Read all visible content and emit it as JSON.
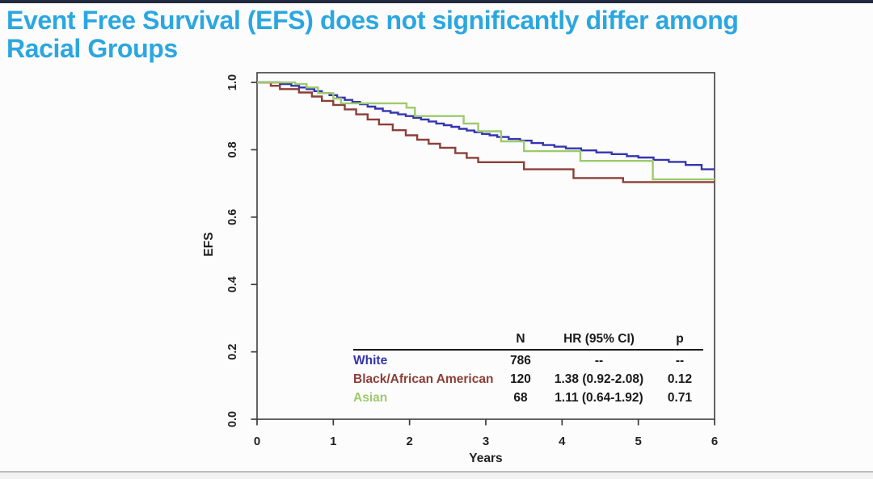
{
  "page": {
    "title_line1": "Event Free Survival (EFS) does not significantly differ among",
    "title_line2": "Racial Groups",
    "title_color": "#2ba7e0"
  },
  "chart_data": {
    "type": "line",
    "subtype": "kaplan-meier-step",
    "title": "",
    "xlabel": "Years",
    "ylabel": "EFS",
    "xlim": [
      0,
      6
    ],
    "ylim": [
      0.0,
      1.0
    ],
    "xticks": [
      "0",
      "1",
      "2",
      "3",
      "4",
      "5",
      "6"
    ],
    "yticks": [
      "0.0",
      "0.2",
      "0.4",
      "0.6",
      "0.8",
      "1.0"
    ],
    "grid": false,
    "legend_position": "inset-table-bottom-right",
    "series": [
      {
        "name": "White",
        "color": "#3434b2",
        "n": 786,
        "hr": "--",
        "p": "--",
        "points": [
          [
            0,
            1.0
          ],
          [
            0.3,
            0.995
          ],
          [
            0.45,
            0.99
          ],
          [
            0.55,
            0.985
          ],
          [
            0.65,
            0.98
          ],
          [
            0.75,
            0.974
          ],
          [
            0.85,
            0.968
          ],
          [
            0.95,
            0.962
          ],
          [
            1.05,
            0.955
          ],
          [
            1.15,
            0.948
          ],
          [
            1.25,
            0.942
          ],
          [
            1.35,
            0.935
          ],
          [
            1.45,
            0.928
          ],
          [
            1.55,
            0.922
          ],
          [
            1.65,
            0.915
          ],
          [
            1.75,
            0.91
          ],
          [
            1.85,
            0.905
          ],
          [
            1.95,
            0.9
          ],
          [
            2.05,
            0.895
          ],
          [
            2.15,
            0.89
          ],
          [
            2.25,
            0.884
          ],
          [
            2.35,
            0.878
          ],
          [
            2.45,
            0.873
          ],
          [
            2.55,
            0.868
          ],
          [
            2.65,
            0.862
          ],
          [
            2.75,
            0.857
          ],
          [
            2.85,
            0.852
          ],
          [
            2.95,
            0.847
          ],
          [
            3.05,
            0.843
          ],
          [
            3.15,
            0.838
          ],
          [
            3.3,
            0.832
          ],
          [
            3.45,
            0.827
          ],
          [
            3.6,
            0.82
          ],
          [
            3.75,
            0.814
          ],
          [
            3.9,
            0.809
          ],
          [
            4.05,
            0.804
          ],
          [
            4.25,
            0.798
          ],
          [
            4.45,
            0.792
          ],
          [
            4.65,
            0.787
          ],
          [
            4.85,
            0.781
          ],
          [
            5.0,
            0.777
          ],
          [
            5.2,
            0.77
          ],
          [
            5.4,
            0.764
          ],
          [
            5.62,
            0.755
          ],
          [
            5.83,
            0.742
          ]
        ]
      },
      {
        "name": "Black/African American",
        "color": "#8c3f38",
        "n": 120,
        "hr": "1.38 (0.92-2.08)",
        "p": "0.12",
        "points": [
          [
            0,
            1.0
          ],
          [
            0.18,
            0.99
          ],
          [
            0.3,
            0.98
          ],
          [
            0.55,
            0.97
          ],
          [
            0.72,
            0.958
          ],
          [
            0.85,
            0.945
          ],
          [
            1.0,
            0.933
          ],
          [
            1.15,
            0.92
          ],
          [
            1.3,
            0.905
          ],
          [
            1.45,
            0.89
          ],
          [
            1.6,
            0.875
          ],
          [
            1.78,
            0.858
          ],
          [
            1.95,
            0.843
          ],
          [
            2.1,
            0.83
          ],
          [
            2.25,
            0.818
          ],
          [
            2.4,
            0.806
          ],
          [
            2.6,
            0.79
          ],
          [
            2.75,
            0.776
          ],
          [
            2.9,
            0.763
          ],
          [
            3.5,
            0.742
          ],
          [
            4.15,
            0.716
          ],
          [
            4.8,
            0.704
          ]
        ]
      },
      {
        "name": "Asian",
        "color": "#9dca6c",
        "n": 68,
        "hr": "1.11 (0.64-1.92)",
        "p": "0.71",
        "points": [
          [
            0,
            1.0
          ],
          [
            0.5,
            0.995
          ],
          [
            0.65,
            0.985
          ],
          [
            0.8,
            0.968
          ],
          [
            1.0,
            0.952
          ],
          [
            1.1,
            0.938
          ],
          [
            1.96,
            0.925
          ],
          [
            2.07,
            0.9
          ],
          [
            2.71,
            0.878
          ],
          [
            2.9,
            0.855
          ],
          [
            3.2,
            0.825
          ],
          [
            3.5,
            0.796
          ],
          [
            4.24,
            0.767
          ],
          [
            5.19,
            0.712
          ]
        ]
      }
    ]
  },
  "inset_table": {
    "headers": {
      "n": "N",
      "hr": "HR (95% CI)",
      "p": "p"
    },
    "rows": [
      {
        "label": "White",
        "n": "786",
        "hr": "--",
        "p": "--",
        "color": "#3434b2"
      },
      {
        "label": "Black/African American",
        "n": "120",
        "hr": "1.38 (0.92-2.08)",
        "p": "0.12",
        "color": "#8c3f38"
      },
      {
        "label": "Asian",
        "n": "68",
        "hr": "1.11 (0.64-1.92)",
        "p": "0.71",
        "color": "#9dca6c"
      }
    ]
  }
}
